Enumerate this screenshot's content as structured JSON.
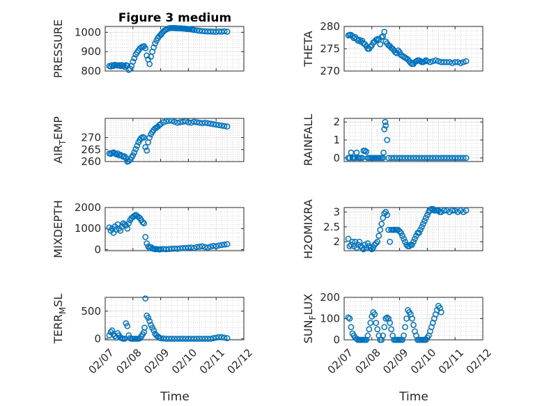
{
  "marker_color": "#0072BD",
  "chart_data": [
    {
      "type": "scatter",
      "title": "Figure 3 medium",
      "ylabel": "PRESSURE",
      "ylim": [
        800,
        1030
      ],
      "yticks": [
        800,
        900,
        1000
      ],
      "xlim": [
        0,
        5
      ],
      "xticks": [
        "02/07",
        "02/08",
        "02/09",
        "02/10",
        "02/11",
        "02/12"
      ],
      "x": [
        0.15,
        0.2,
        0.25,
        0.3,
        0.35,
        0.4,
        0.45,
        0.5,
        0.55,
        0.6,
        0.65,
        0.7,
        0.75,
        0.8,
        0.85,
        0.9,
        0.95,
        1.0,
        1.05,
        1.1,
        1.15,
        1.2,
        1.25,
        1.3,
        1.35,
        1.4,
        1.45,
        1.5,
        1.55,
        1.6,
        1.65,
        1.7,
        1.75,
        1.8,
        1.85,
        1.9,
        1.95,
        2.0,
        2.03,
        2.06,
        2.1,
        2.15,
        2.2,
        2.25,
        2.3,
        2.35,
        2.4,
        2.45,
        2.5,
        2.55,
        2.6,
        2.65,
        2.7,
        2.75,
        2.8,
        2.85,
        2.9,
        2.95,
        3.0,
        3.05,
        3.1,
        3.15,
        3.2,
        3.3,
        3.4,
        3.5,
        3.6,
        3.7,
        3.8,
        3.9,
        4.0,
        4.1,
        4.2,
        4.3,
        4.4
      ],
      "y": [
        826,
        823,
        830,
        826,
        832,
        830,
        828,
        830,
        826,
        831,
        827,
        822,
        830,
        828,
        806,
        812,
        826,
        848,
        866,
        885,
        896,
        906,
        916,
        922,
        926,
        928,
        918,
        880,
        860,
        836,
        874,
        900,
        922,
        942,
        957,
        970,
        980,
        986,
        992,
        998,
        1004,
        1010,
        1014,
        1018,
        1020,
        1022,
        1022,
        1022,
        1022,
        1021,
        1021,
        1020,
        1020,
        1020,
        1019,
        1019,
        1018,
        1017,
        1017,
        1016,
        1015,
        1014,
        1012,
        1010,
        1008,
        1006,
        1005,
        1004,
        1004,
        1003,
        1002,
        1004,
        1003,
        1005,
        1003
      ]
    },
    {
      "type": "scatter",
      "ylabel": "THETA",
      "ylim": [
        270,
        280
      ],
      "yticks": [
        270,
        275,
        280
      ],
      "xlim": [
        0,
        5
      ],
      "xticks": [
        "02/07",
        "02/08",
        "02/09",
        "02/10",
        "02/11",
        "02/12"
      ],
      "x": [
        0.15,
        0.2,
        0.25,
        0.3,
        0.35,
        0.4,
        0.45,
        0.5,
        0.55,
        0.6,
        0.65,
        0.7,
        0.75,
        0.8,
        0.85,
        0.9,
        0.95,
        1.0,
        1.05,
        1.1,
        1.15,
        1.2,
        1.25,
        1.3,
        1.35,
        1.4,
        1.45,
        1.5,
        1.55,
        1.6,
        1.65,
        1.7,
        1.75,
        1.8,
        1.85,
        1.9,
        1.95,
        2.0,
        2.05,
        2.1,
        2.15,
        2.2,
        2.25,
        2.3,
        2.35,
        2.4,
        2.45,
        2.5,
        2.55,
        2.6,
        2.65,
        2.7,
        2.75,
        2.8,
        2.85,
        2.9,
        2.95,
        3.0,
        3.1,
        3.2,
        3.3,
        3.4,
        3.5,
        3.6,
        3.7,
        3.8,
        3.9,
        4.0,
        4.1,
        4.2,
        4.3,
        4.4
      ],
      "y": [
        278,
        278.1,
        278.1,
        277.8,
        277.4,
        277.6,
        277.2,
        276.8,
        277.0,
        276.6,
        276.8,
        276.2,
        276.0,
        275.6,
        275.0,
        275.0,
        275.4,
        275.8,
        276.4,
        276.6,
        277.0,
        277.2,
        277.0,
        276.0,
        277.6,
        277.8,
        278.8,
        276.6,
        276.2,
        275.8,
        275.6,
        275.2,
        275.0,
        274.6,
        274.2,
        274.0,
        274.6,
        274.2,
        273.6,
        273.4,
        273.2,
        273.0,
        272.8,
        272.6,
        272.2,
        271.8,
        271.6,
        271.6,
        272.0,
        272.2,
        272.4,
        272.4,
        272.2,
        272.0,
        272.0,
        272.2,
        272.4,
        272.2,
        272.0,
        272.2,
        272.4,
        272.2,
        272.0,
        272.0,
        272.0,
        272.0,
        271.8,
        272.0,
        272.0,
        271.8,
        272.0,
        272.2
      ]
    },
    {
      "type": "scatter",
      "ylabel": "AIR_TEMP",
      "ylim": [
        260,
        278
      ],
      "yticks": [
        260,
        265,
        270
      ],
      "xlim": [
        0,
        5
      ],
      "xticks": [
        "02/07",
        "02/08",
        "02/09",
        "02/10",
        "02/11",
        "02/12"
      ],
      "x": [
        0.15,
        0.2,
        0.25,
        0.3,
        0.35,
        0.4,
        0.45,
        0.5,
        0.55,
        0.6,
        0.65,
        0.7,
        0.75,
        0.8,
        0.85,
        0.9,
        0.95,
        1.0,
        1.05,
        1.1,
        1.15,
        1.2,
        1.25,
        1.3,
        1.35,
        1.4,
        1.45,
        1.5,
        1.55,
        1.6,
        1.65,
        1.7,
        1.75,
        1.8,
        1.85,
        1.9,
        1.95,
        2.0,
        2.1,
        2.2,
        2.3,
        2.4,
        2.5,
        2.6,
        2.7,
        2.8,
        2.9,
        3.0,
        3.1,
        3.2,
        3.3,
        3.4,
        3.5,
        3.6,
        3.7,
        3.8,
        3.9,
        4.0,
        4.1,
        4.2,
        4.3,
        4.4
      ],
      "y": [
        263.4,
        263.2,
        263.6,
        263.8,
        263.4,
        263.0,
        263.4,
        262.6,
        262.8,
        262.4,
        262.0,
        262.2,
        261.4,
        260.0,
        260.2,
        260.8,
        261.8,
        262.6,
        263.8,
        265.2,
        266.6,
        268.0,
        269.0,
        269.8,
        270.2,
        270.0,
        266.0,
        264.6,
        268.0,
        270.0,
        271.4,
        272.4,
        273.2,
        273.8,
        274.2,
        274.6,
        275.2,
        275.6,
        276.4,
        276.8,
        277.0,
        277.0,
        276.6,
        276.2,
        276.4,
        276.6,
        276.8,
        276.4,
        276.2,
        276.6,
        276.4,
        276.2,
        276.0,
        276.2,
        276.0,
        275.8,
        275.6,
        275.4,
        275.2,
        275.0,
        274.8,
        274.6
      ]
    },
    {
      "type": "scatter",
      "ylabel": "RAINFALL",
      "ylim": [
        -0.2,
        2.2
      ],
      "yticks": [
        0,
        1,
        2
      ],
      "xlim": [
        0,
        5
      ],
      "xticks": [
        "02/07",
        "02/08",
        "02/09",
        "02/10",
        "02/11",
        "02/12"
      ],
      "x": [
        0.15,
        0.2,
        0.25,
        0.3,
        0.35,
        0.4,
        0.45,
        0.5,
        0.55,
        0.6,
        0.65,
        0.7,
        0.75,
        0.8,
        0.85,
        0.9,
        0.95,
        1.0,
        1.05,
        1.1,
        1.15,
        1.2,
        1.25,
        1.3,
        1.35,
        1.4,
        1.42,
        1.45,
        1.48,
        1.5,
        1.55,
        1.6,
        1.7,
        1.8,
        1.9,
        2.0,
        2.1,
        2.2,
        2.3,
        2.4,
        2.5,
        2.6,
        2.7,
        2.8,
        2.9,
        3.0,
        3.1,
        3.2,
        3.3,
        3.4,
        3.5,
        3.6,
        3.7,
        3.8,
        3.9,
        4.0,
        4.1,
        4.2,
        4.3,
        4.4
      ],
      "y": [
        0,
        0,
        0.3,
        0,
        0,
        0,
        0.3,
        0,
        0,
        0,
        0,
        0.4,
        0.4,
        0.35,
        0,
        0,
        0,
        0,
        0,
        0,
        0,
        0,
        0,
        0,
        0,
        0,
        0.3,
        1.6,
        2.0,
        1.8,
        1.0,
        0,
        0,
        0,
        0,
        0,
        0,
        0,
        0,
        0,
        0,
        0,
        0,
        0,
        0,
        0,
        0,
        0,
        0,
        0,
        0,
        0,
        0,
        0,
        0,
        0,
        0,
        0,
        0,
        0
      ]
    },
    {
      "type": "scatter",
      "ylabel": "MIXDEPTH",
      "ylim": [
        -50,
        2000
      ],
      "yticks": [
        0,
        1000,
        2000
      ],
      "xlim": [
        0,
        5
      ],
      "xticks": [
        "02/07",
        "02/08",
        "02/09",
        "02/10",
        "02/11",
        "02/12"
      ],
      "x": [
        0.15,
        0.2,
        0.25,
        0.3,
        0.35,
        0.4,
        0.45,
        0.5,
        0.55,
        0.6,
        0.65,
        0.7,
        0.75,
        0.8,
        0.85,
        0.9,
        0.95,
        1.0,
        1.05,
        1.1,
        1.15,
        1.2,
        1.25,
        1.3,
        1.35,
        1.4,
        1.45,
        1.5,
        1.55,
        1.6,
        1.65,
        1.7,
        1.75,
        1.8,
        1.85,
        1.9,
        1.95,
        2.0,
        2.1,
        2.2,
        2.3,
        2.4,
        2.5,
        2.6,
        2.7,
        2.8,
        2.9,
        3.0,
        3.1,
        3.2,
        3.3,
        3.4,
        3.5,
        3.6,
        3.7,
        3.8,
        3.9,
        4.0,
        4.1,
        4.2,
        4.3,
        4.4
      ],
      "y": [
        1050,
        900,
        1000,
        800,
        1100,
        950,
        1200,
        1000,
        900,
        1100,
        1250,
        1200,
        1150,
        1000,
        1250,
        1400,
        1500,
        1550,
        1600,
        1650,
        1600,
        1550,
        1500,
        1400,
        1300,
        1250,
        600,
        300,
        150,
        80,
        120,
        60,
        40,
        20,
        30,
        20,
        10,
        20,
        30,
        20,
        30,
        40,
        50,
        40,
        60,
        70,
        80,
        90,
        100,
        80,
        120,
        140,
        160,
        120,
        100,
        140,
        180,
        160,
        200,
        220,
        240,
        260
      ]
    },
    {
      "type": "scatter",
      "ylabel": "H2OMIXRA",
      "ylim": [
        1.7,
        3.15
      ],
      "yticks": [
        2,
        2.5,
        3
      ],
      "xlim": [
        0,
        5
      ],
      "xticks": [
        "02/07",
        "02/08",
        "02/09",
        "02/10",
        "02/11",
        "02/12"
      ],
      "x": [
        0.15,
        0.2,
        0.25,
        0.3,
        0.35,
        0.4,
        0.45,
        0.5,
        0.55,
        0.6,
        0.65,
        0.7,
        0.75,
        0.8,
        0.85,
        0.9,
        0.95,
        1.0,
        1.05,
        1.1,
        1.15,
        1.2,
        1.25,
        1.3,
        1.35,
        1.4,
        1.45,
        1.5,
        1.55,
        1.6,
        1.65,
        1.7,
        1.75,
        1.8,
        1.85,
        1.9,
        1.95,
        2.0,
        2.05,
        2.1,
        2.15,
        2.2,
        2.25,
        2.3,
        2.35,
        2.4,
        2.45,
        2.5,
        2.55,
        2.6,
        2.65,
        2.7,
        2.75,
        2.8,
        2.85,
        2.9,
        2.95,
        3.0,
        3.05,
        3.1,
        3.15,
        3.2,
        3.25,
        3.3,
        3.35,
        3.4,
        3.45,
        3.5,
        3.6,
        3.7,
        3.8,
        3.9,
        4.0,
        4.1,
        4.2,
        4.3,
        4.4
      ],
      "y": [
        2.1,
        1.85,
        1.9,
        2.0,
        1.85,
        2.0,
        1.8,
        1.9,
        2.0,
        1.85,
        1.8,
        1.75,
        1.9,
        1.8,
        1.95,
        1.85,
        1.8,
        1.75,
        1.8,
        1.9,
        1.95,
        2.0,
        2.2,
        2.4,
        2.6,
        2.8,
        2.95,
        3.0,
        2.9,
        2.4,
        2.0,
        2.4,
        2.4,
        2.4,
        2.4,
        2.4,
        2.4,
        2.35,
        2.3,
        2.2,
        2.1,
        2.0,
        1.9,
        1.85,
        1.85,
        1.9,
        1.9,
        2.0,
        2.1,
        2.2,
        2.3,
        2.3,
        2.4,
        2.5,
        2.6,
        2.7,
        2.8,
        2.9,
        3.0,
        3.05,
        3.1,
        3.1,
        3.05,
        3.05,
        3.05,
        3.05,
        3.0,
        3.0,
        3.05,
        3.05,
        3.0,
        3.05,
        3.05,
        3.0,
        3.05,
        3.0,
        3.05
      ]
    },
    {
      "type": "scatter",
      "ylabel": "TERR_MSL",
      "ylim": [
        -20,
        750
      ],
      "yticks": [
        0,
        500
      ],
      "xlim": [
        0,
        5
      ],
      "xticks": [
        "02/07",
        "02/08",
        "02/09",
        "02/10",
        "02/11",
        "02/12"
      ],
      "x": [
        0.15,
        0.2,
        0.25,
        0.3,
        0.35,
        0.4,
        0.45,
        0.5,
        0.55,
        0.6,
        0.65,
        0.7,
        0.75,
        0.8,
        0.85,
        0.9,
        0.95,
        1.0,
        1.05,
        1.1,
        1.15,
        1.2,
        1.25,
        1.3,
        1.35,
        1.4,
        1.42,
        1.45,
        1.5,
        1.55,
        1.6,
        1.65,
        1.7,
        1.75,
        1.8,
        1.85,
        1.9,
        1.95,
        2.0,
        2.1,
        2.2,
        2.3,
        2.4,
        2.5,
        2.6,
        2.7,
        2.8,
        2.9,
        3.0,
        3.1,
        3.2,
        3.3,
        3.4,
        3.5,
        3.6,
        3.7,
        3.8,
        3.9,
        4.0,
        4.1,
        4.2,
        4.3,
        4.4
      ],
      "y": [
        60,
        120,
        150,
        80,
        50,
        20,
        100,
        60,
        20,
        10,
        0,
        0,
        280,
        230,
        60,
        10,
        0,
        0,
        0,
        0,
        0,
        0,
        10,
        40,
        80,
        120,
        200,
        730,
        420,
        380,
        320,
        250,
        200,
        150,
        90,
        60,
        40,
        20,
        10,
        5,
        0,
        0,
        0,
        0,
        0,
        0,
        0,
        0,
        0,
        0,
        0,
        0,
        0,
        0,
        0,
        0,
        0,
        10,
        20,
        30,
        30,
        20,
        10
      ]
    },
    {
      "type": "scatter",
      "ylabel": "SUN_FLUX",
      "ylim": [
        0,
        200
      ],
      "yticks": [
        0,
        100,
        200
      ],
      "xlim": [
        0,
        5
      ],
      "xticks": [
        "02/07",
        "02/08",
        "02/09",
        "02/10",
        "02/11",
        "02/12"
      ],
      "x": [
        0.15,
        0.2,
        0.25,
        0.3,
        0.35,
        0.4,
        0.45,
        0.5,
        0.55,
        0.6,
        0.65,
        0.7,
        0.75,
        0.8,
        0.85,
        0.9,
        0.95,
        1.0,
        1.05,
        1.1,
        1.15,
        1.2,
        1.25,
        1.3,
        1.35,
        1.4,
        1.45,
        1.5,
        1.55,
        1.6,
        1.65,
        1.7,
        1.75,
        1.8,
        1.85,
        1.9,
        1.95,
        2.0,
        2.05,
        2.1,
        2.15,
        2.2,
        2.25,
        2.3,
        2.35,
        2.4,
        2.45,
        2.5,
        2.55,
        2.6,
        2.65,
        2.7,
        2.75,
        2.8,
        2.85,
        2.9,
        2.95,
        3.0,
        3.05,
        3.1,
        3.15,
        3.2,
        3.25,
        3.3,
        3.35,
        3.4,
        3.45,
        3.5
      ],
      "y": [
        105,
        100,
        60,
        30,
        20,
        10,
        5,
        0,
        0,
        0,
        0,
        0,
        0,
        0,
        20,
        50,
        80,
        110,
        130,
        120,
        80,
        50,
        20,
        0,
        0,
        20,
        60,
        100,
        105,
        100,
        80,
        50,
        20,
        0,
        0,
        0,
        0,
        0,
        0,
        0,
        20,
        60,
        100,
        140,
        130,
        120,
        100,
        70,
        40,
        20,
        0,
        0,
        0,
        0,
        0,
        0,
        0,
        10,
        20,
        40,
        60,
        80,
        100,
        120,
        140,
        160,
        150,
        130
      ]
    }
  ],
  "xlabel": "Time"
}
